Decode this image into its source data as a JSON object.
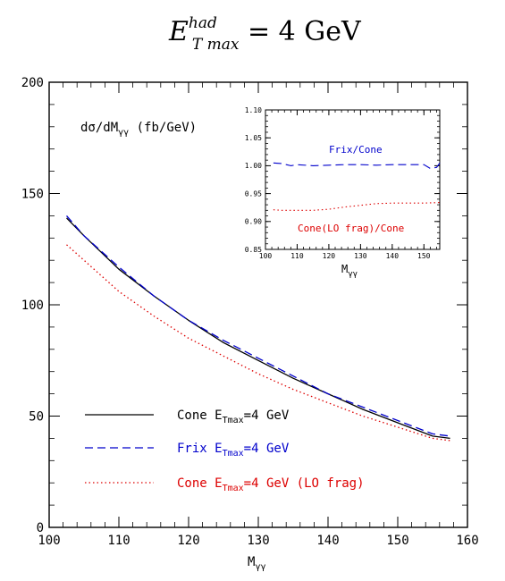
{
  "figure_title": {
    "main": "E",
    "sup": "had",
    "sub": "T max",
    "rest": " = 4 GeV"
  },
  "chart_data": [
    {
      "type": "line",
      "title": "",
      "ylabel_annotation": {
        "text": "dσ/dM",
        "sub": "γγ",
        "suffix": " (fb/GeV)"
      },
      "xlabel": {
        "text": "M",
        "sub": "γγ"
      },
      "xlim": [
        100,
        160
      ],
      "ylim": [
        0,
        200
      ],
      "x_ticks": [
        "100",
        "110",
        "120",
        "130",
        "140",
        "150",
        "160"
      ],
      "y_ticks": [
        "0",
        "50",
        "100",
        "150",
        "200"
      ],
      "grid": false,
      "legend_position": "bottom-left",
      "series": [
        {
          "name": "Cone E",
          "sub": "Tmax",
          "suffix": "=4 GeV",
          "color": "#000000",
          "dash": "solid",
          "x": [
            102.5,
            105,
            110,
            115,
            120,
            125,
            130,
            135,
            140,
            145,
            150,
            155,
            157.5
          ],
          "y": [
            139,
            131,
            116,
            104,
            93,
            83,
            75,
            67,
            60,
            53,
            47,
            41,
            40
          ]
        },
        {
          "name": "Frix E",
          "sub": "Tmax",
          "suffix": "=4 GeV",
          "color": "#0000cc",
          "dash": "dashed",
          "x": [
            102.5,
            105,
            110,
            115,
            120,
            125,
            130,
            135,
            140,
            145,
            150,
            155,
            157.5
          ],
          "y": [
            140,
            131,
            117,
            104,
            93,
            84,
            76,
            68,
            60,
            54,
            48,
            42,
            41
          ]
        },
        {
          "name": "Cone E",
          "sub": "Tmax",
          "suffix": "=4 GeV (LO frag)",
          "color": "#dd0000",
          "dash": "dotted",
          "x": [
            102.5,
            105,
            110,
            115,
            120,
            125,
            130,
            135,
            140,
            145,
            150,
            155,
            157.5
          ],
          "y": [
            127,
            120,
            106,
            95,
            85,
            77,
            69,
            62,
            56,
            50,
            45,
            40,
            39
          ]
        }
      ]
    },
    {
      "type": "line",
      "title": "",
      "xlabel": {
        "text": "M",
        "sub": "γγ"
      },
      "xlim": [
        100,
        155
      ],
      "ylim": [
        0.85,
        1.1
      ],
      "x_ticks": [
        "100",
        "110",
        "120",
        "130",
        "140",
        "150"
      ],
      "y_ticks": [
        "0.85",
        "0.90",
        "0.95",
        "1.00",
        "1.05",
        "1.10"
      ],
      "grid": false,
      "series": [
        {
          "name": "Frix/Cone",
          "color": "#0000cc",
          "dash": "dashed",
          "x": [
            102.5,
            105,
            108,
            110,
            115,
            120,
            125,
            130,
            135,
            140,
            145,
            150,
            152,
            154,
            155
          ],
          "y": [
            1.005,
            1.004,
            1.0,
            1.002,
            1.0,
            1.001,
            1.002,
            1.002,
            1.001,
            1.002,
            1.002,
            1.002,
            0.995,
            0.997,
            1.005
          ]
        },
        {
          "name": "Cone(LO frag)/Cone",
          "color": "#dd0000",
          "dash": "dotted",
          "x": [
            102.5,
            105,
            110,
            115,
            120,
            125,
            130,
            135,
            140,
            145,
            150,
            155
          ],
          "y": [
            0.921,
            0.92,
            0.92,
            0.92,
            0.922,
            0.926,
            0.929,
            0.932,
            0.933,
            0.933,
            0.933,
            0.934
          ]
        }
      ]
    }
  ]
}
